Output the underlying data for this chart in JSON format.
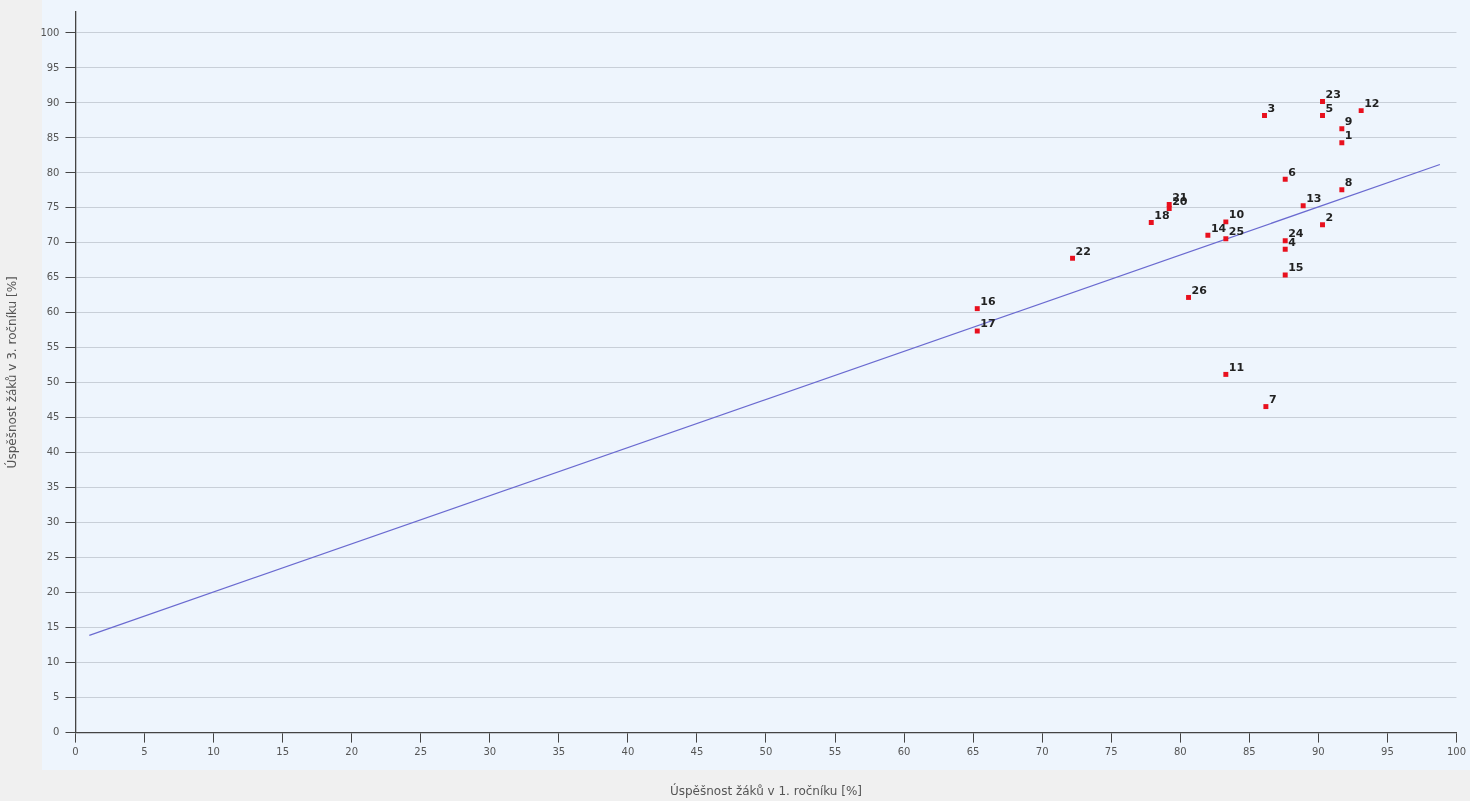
{
  "chart_data": {
    "type": "scatter",
    "xlabel": "Úspěšnost žáků v 1. ročníku [%]",
    "ylabel": "Úspěšnost žáků v 3. ročníku [%]",
    "xlim": [
      0,
      100
    ],
    "ylim": [
      0,
      103
    ],
    "xticks": [
      0,
      5,
      10,
      15,
      20,
      25,
      30,
      35,
      40,
      45,
      50,
      55,
      60,
      65,
      70,
      75,
      80,
      85,
      90,
      95,
      100
    ],
    "yticks": [
      0,
      5,
      10,
      15,
      20,
      25,
      30,
      35,
      40,
      45,
      50,
      55,
      60,
      65,
      70,
      75,
      80,
      85,
      90,
      95,
      100
    ],
    "grid": "y",
    "series": [
      {
        "color": "#e8101e",
        "marker": "square",
        "x": [
          91.7,
          90.3,
          86.1,
          87.6,
          90.3,
          87.6,
          86.2,
          91.7,
          91.7,
          83.3,
          83.3,
          93.1,
          88.9,
          82.0,
          87.6,
          65.3,
          65.3,
          77.9,
          79.2,
          79.2,
          72.2,
          90.3,
          87.6,
          83.3,
          80.6
        ],
        "values": [
          84.3,
          72.6,
          88.2,
          69.1,
          88.2,
          79.1,
          46.6,
          77.6,
          86.3,
          73.0,
          51.2,
          88.9,
          75.3,
          71.1,
          65.4,
          60.6,
          57.4,
          72.9,
          74.9,
          75.5,
          67.8,
          90.2,
          70.3,
          70.6,
          62.2
        ]
      },
      {
        "type": "line",
        "color": "#6a6ad0",
        "marker": "none",
        "line_style": "solid",
        "x": [
          1,
          98.8
        ],
        "values": [
          13.9,
          81.2
        ]
      }
    ],
    "annotations": [
      {
        "text": "1",
        "x": 91.7,
        "y": 84.3
      },
      {
        "text": "2",
        "x": 90.3,
        "y": 72.6
      },
      {
        "text": "3",
        "x": 86.1,
        "y": 88.2
      },
      {
        "text": "4",
        "x": 87.6,
        "y": 69.1
      },
      {
        "text": "5",
        "x": 90.3,
        "y": 88.2
      },
      {
        "text": "6",
        "x": 87.6,
        "y": 79.1
      },
      {
        "text": "7",
        "x": 86.2,
        "y": 46.6
      },
      {
        "text": "8",
        "x": 91.7,
        "y": 77.6
      },
      {
        "text": "9",
        "x": 91.7,
        "y": 86.3
      },
      {
        "text": "10",
        "x": 83.3,
        "y": 73.0
      },
      {
        "text": "11",
        "x": 83.3,
        "y": 51.2
      },
      {
        "text": "12",
        "x": 93.1,
        "y": 88.9
      },
      {
        "text": "13",
        "x": 88.9,
        "y": 75.3
      },
      {
        "text": "14",
        "x": 82.0,
        "y": 71.1
      },
      {
        "text": "15",
        "x": 87.6,
        "y": 65.4
      },
      {
        "text": "16",
        "x": 65.3,
        "y": 60.6
      },
      {
        "text": "17",
        "x": 65.3,
        "y": 57.4
      },
      {
        "text": "18",
        "x": 77.9,
        "y": 72.9
      },
      {
        "text": "20",
        "x": 79.2,
        "y": 74.9
      },
      {
        "text": "21",
        "x": 79.2,
        "y": 75.5
      },
      {
        "text": "22",
        "x": 72.2,
        "y": 67.8
      },
      {
        "text": "23",
        "x": 90.3,
        "y": 90.2
      },
      {
        "text": "24",
        "x": 87.6,
        "y": 70.3
      },
      {
        "text": "25",
        "x": 83.3,
        "y": 70.6
      },
      {
        "text": "26",
        "x": 80.6,
        "y": 62.2
      }
    ]
  }
}
